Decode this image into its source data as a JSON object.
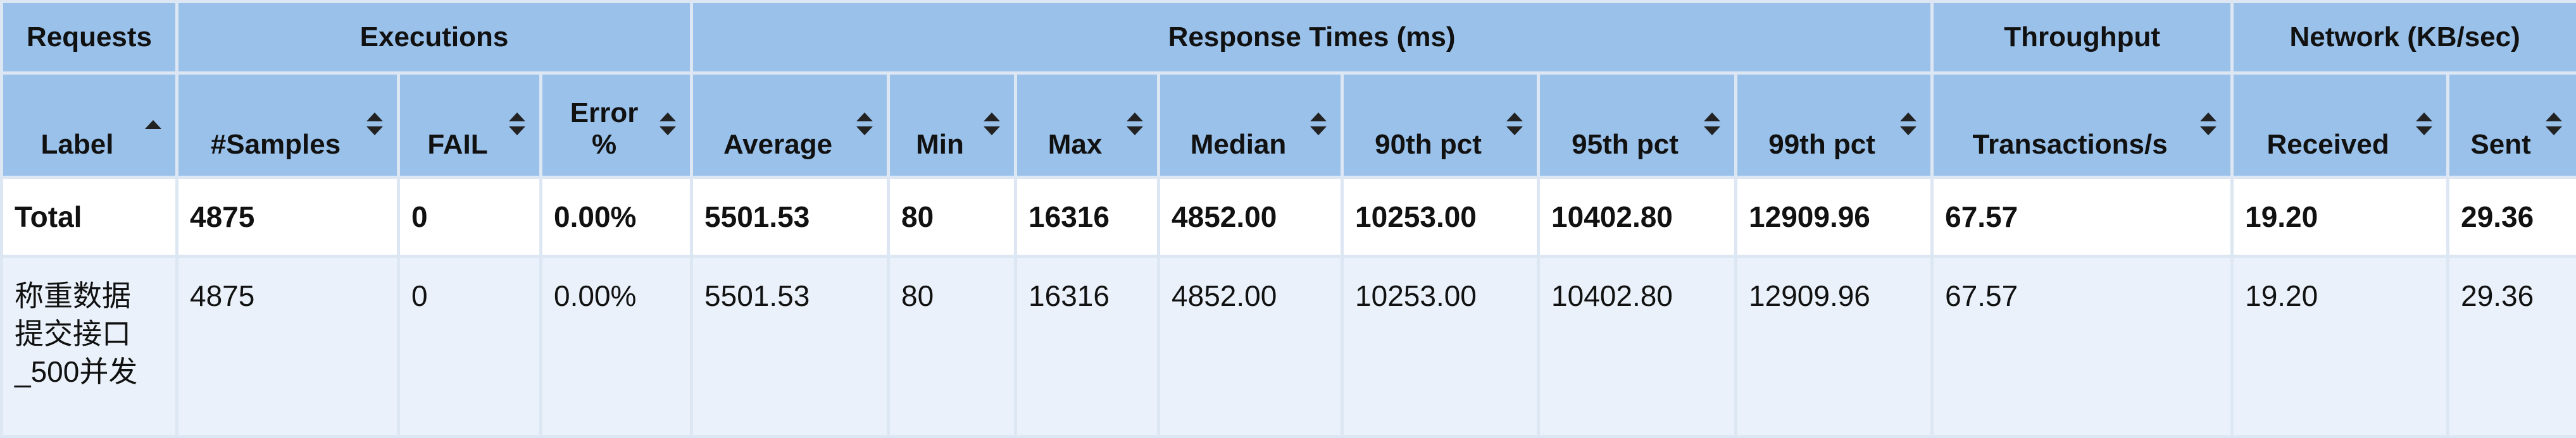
{
  "groups": [
    "Requests",
    "Executions",
    "Response Times (ms)",
    "Throughput",
    "Network (KB/sec)"
  ],
  "columns": [
    "Label",
    "#Samples",
    "FAIL",
    "Error %",
    "Average",
    "Min",
    "Max",
    "Median",
    "90th pct",
    "95th pct",
    "99th pct",
    "Transactions/s",
    "Received",
    "Sent"
  ],
  "sort": {
    "column": "Label",
    "direction": "ascending"
  },
  "total": {
    "label": "Total",
    "samples": "4875",
    "fail": "0",
    "error_pct": "0.00%",
    "average": "5501.53",
    "min": "80",
    "max": "16316",
    "median": "4852.00",
    "p90": "10253.00",
    "p95": "10402.80",
    "p99": "12909.96",
    "tps": "67.57",
    "received": "19.20",
    "sent": "29.36"
  },
  "rows": [
    {
      "label_lines": [
        "称重数据",
        "提交接口",
        "_500并发"
      ],
      "samples": "4875",
      "fail": "0",
      "error_pct": "0.00%",
      "average": "5501.53",
      "min": "80",
      "max": "16316",
      "median": "4852.00",
      "p90": "10253.00",
      "p95": "10402.80",
      "p99": "12909.96",
      "tps": "67.57",
      "received": "19.20",
      "sent": "29.36"
    }
  ]
}
